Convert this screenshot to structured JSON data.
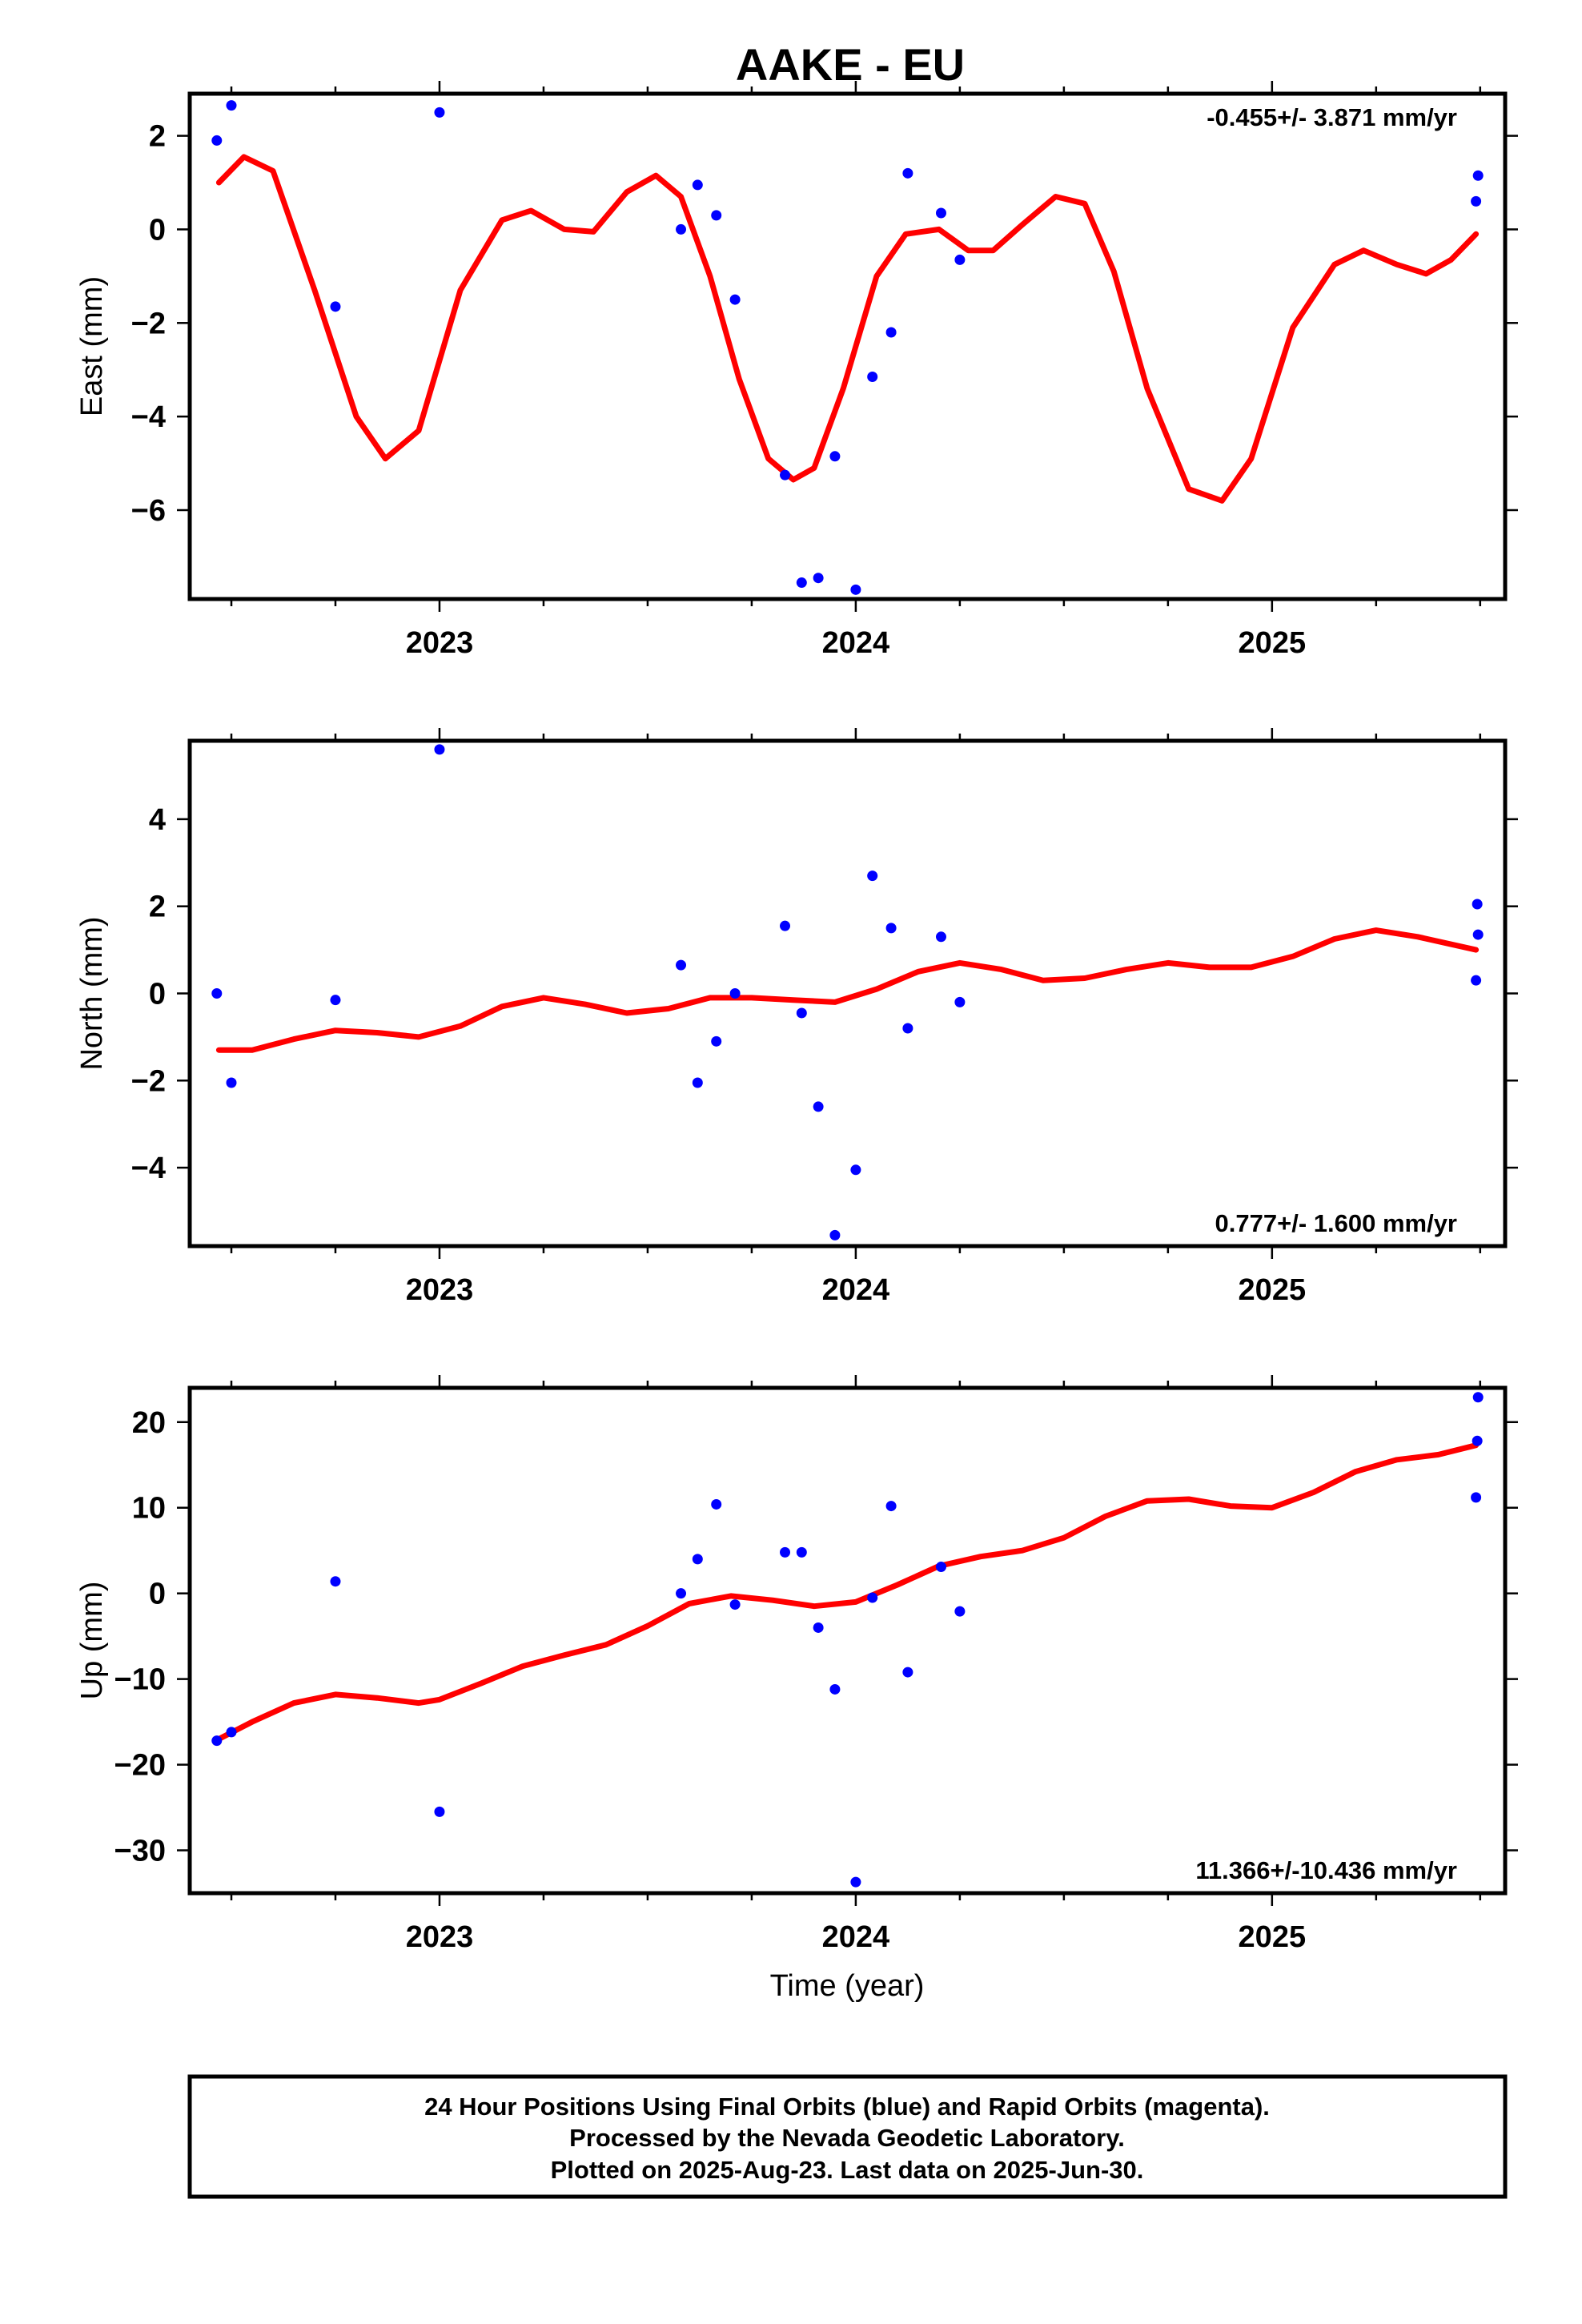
{
  "title": "AAKE - EU",
  "footer": [
    "24 Hour Positions Using Final Orbits (blue) and Rapid Orbits (magenta).",
    "Processed by the Nevada Geodetic Laboratory.",
    "Plotted on 2025-Aug-23. Last data on 2025-Jun-30."
  ],
  "colors": {
    "points": "#0000ff",
    "fit": "#ff0000",
    "axes": "#000000"
  },
  "chart_data": [
    {
      "type": "scatter",
      "ylabel": "East (mm)",
      "xlabel": "",
      "rate_text": "-0.455+/- 3.871 mm/yr",
      "rate_position": "top-right",
      "xlim": [
        2022.4,
        2025.56
      ],
      "ylim": [
        -7.9,
        2.9
      ],
      "xticks": [
        2023,
        2024,
        2025
      ],
      "yticks": [
        2,
        0,
        -2,
        -4,
        -6
      ],
      "ytick_labels": [
        "2",
        "0",
        "−2",
        "−4",
        "−6"
      ],
      "grid": false,
      "series": [
        {
          "type": "scatter",
          "x": [
            2022.465,
            2022.5,
            2022.75,
            2023.0,
            2023.58,
            2023.62,
            2023.665,
            2023.71,
            2023.83,
            2023.87,
            2023.91,
            2023.95,
            2024.0,
            2024.04,
            2024.085,
            2024.125,
            2024.205,
            2024.25,
            2025.49,
            2025.495
          ],
          "y": [
            1.9,
            2.65,
            -1.65,
            2.5,
            0.0,
            0.95,
            0.3,
            -1.5,
            -5.25,
            -7.55,
            -7.45,
            -4.85,
            -7.7,
            -3.15,
            -2.2,
            1.2,
            0.35,
            -0.65,
            0.6,
            1.15
          ]
        },
        {
          "type": "line",
          "x": [
            2022.47,
            2022.53,
            2022.6,
            2022.7,
            2022.8,
            2022.87,
            2022.95,
            2023.05,
            2023.15,
            2023.22,
            2023.3,
            2023.37,
            2023.45,
            2023.52,
            2023.58,
            2023.65,
            2023.72,
            2023.79,
            2023.85,
            2023.9,
            2023.97,
            2024.05,
            2024.12,
            2024.2,
            2024.27,
            2024.33,
            2024.4,
            2024.48,
            2024.55,
            2024.62,
            2024.7,
            2024.8,
            2024.88,
            2024.95,
            2025.05,
            2025.15,
            2025.22,
            2025.3,
            2025.37,
            2025.43,
            2025.49
          ],
          "y": [
            1.0,
            1.55,
            1.25,
            -1.3,
            -4.0,
            -4.9,
            -4.3,
            -1.3,
            0.2,
            0.4,
            0.0,
            -0.05,
            0.8,
            1.15,
            0.7,
            -1.0,
            -3.2,
            -4.9,
            -5.35,
            -5.1,
            -3.4,
            -1.0,
            -0.1,
            0.0,
            -0.45,
            -0.45,
            0.1,
            0.7,
            0.55,
            -0.9,
            -3.4,
            -5.55,
            -5.8,
            -4.9,
            -2.1,
            -0.75,
            -0.45,
            -0.75,
            -0.95,
            -0.65,
            -0.1
          ]
        }
      ]
    },
    {
      "type": "scatter",
      "ylabel": "North (mm)",
      "xlabel": "",
      "rate_text": "0.777+/- 1.600 mm/yr",
      "rate_position": "bottom-right",
      "xlim": [
        2022.4,
        2025.56
      ],
      "ylim": [
        -5.8,
        5.8
      ],
      "xticks": [
        2023,
        2024,
        2025
      ],
      "yticks": [
        4,
        2,
        0,
        -2,
        -4
      ],
      "ytick_labels": [
        "4",
        "2",
        "0",
        "−2",
        "−4"
      ],
      "grid": false,
      "series": [
        {
          "type": "scatter",
          "x": [
            2022.465,
            2022.5,
            2022.75,
            2023.0,
            2023.58,
            2023.62,
            2023.665,
            2023.71,
            2023.83,
            2023.87,
            2023.91,
            2023.95,
            2024.0,
            2024.04,
            2024.085,
            2024.125,
            2024.205,
            2024.25,
            2025.49,
            2025.493,
            2025.495
          ],
          "y": [
            0.0,
            -2.05,
            -0.15,
            5.6,
            0.65,
            -2.05,
            -1.1,
            0.0,
            1.55,
            -0.45,
            -2.6,
            -5.55,
            -4.05,
            2.7,
            1.5,
            -0.8,
            1.3,
            -0.2,
            0.3,
            2.05,
            1.35
          ]
        },
        {
          "type": "line",
          "x": [
            2022.47,
            2022.55,
            2022.65,
            2022.75,
            2022.85,
            2022.95,
            2023.05,
            2023.15,
            2023.25,
            2023.35,
            2023.45,
            2023.55,
            2023.65,
            2023.75,
            2023.85,
            2023.95,
            2024.05,
            2024.15,
            2024.25,
            2024.35,
            2024.45,
            2024.55,
            2024.65,
            2024.75,
            2024.85,
            2024.95,
            2025.05,
            2025.15,
            2025.25,
            2025.35,
            2025.49
          ],
          "y": [
            -1.3,
            -1.3,
            -1.05,
            -0.85,
            -0.9,
            -1.0,
            -0.75,
            -0.3,
            -0.1,
            -0.25,
            -0.45,
            -0.35,
            -0.1,
            -0.1,
            -0.15,
            -0.2,
            0.1,
            0.5,
            0.7,
            0.55,
            0.3,
            0.35,
            0.55,
            0.7,
            0.6,
            0.6,
            0.85,
            1.25,
            1.45,
            1.3,
            1.0
          ]
        }
      ]
    },
    {
      "type": "scatter",
      "ylabel": "Up (mm)",
      "xlabel": "Time (year)",
      "rate_text": "11.366+/-10.436 mm/yr",
      "rate_position": "bottom-right",
      "xlim": [
        2022.4,
        2025.56
      ],
      "ylim": [
        -35,
        24
      ],
      "xticks": [
        2023,
        2024,
        2025
      ],
      "yticks": [
        20,
        10,
        0,
        -10,
        -20,
        -30
      ],
      "ytick_labels": [
        "20",
        "10",
        "0",
        "−10",
        "−20",
        "−30"
      ],
      "grid": false,
      "series": [
        {
          "type": "scatter",
          "x": [
            2022.465,
            2022.5,
            2022.75,
            2023.0,
            2023.58,
            2023.62,
            2023.665,
            2023.71,
            2023.83,
            2023.87,
            2023.91,
            2023.95,
            2024.0,
            2024.04,
            2024.085,
            2024.125,
            2024.205,
            2024.25,
            2025.49,
            2025.493,
            2025.495
          ],
          "y": [
            -17.2,
            -16.2,
            1.4,
            -25.5,
            0.0,
            4.0,
            10.4,
            -1.3,
            4.8,
            4.8,
            -4.0,
            -11.2,
            -33.7,
            -0.5,
            10.2,
            -9.2,
            3.1,
            -2.1,
            11.2,
            17.8,
            22.9
          ]
        },
        {
          "type": "line",
          "x": [
            2022.47,
            2022.55,
            2022.65,
            2022.75,
            2022.85,
            2022.95,
            2023.0,
            2023.1,
            2023.2,
            2023.3,
            2023.4,
            2023.5,
            2023.6,
            2023.7,
            2023.8,
            2023.9,
            2024.0,
            2024.1,
            2024.2,
            2024.3,
            2024.4,
            2024.5,
            2024.6,
            2024.7,
            2024.8,
            2024.9,
            2025.0,
            2025.1,
            2025.2,
            2025.3,
            2025.4,
            2025.49
          ],
          "y": [
            -17.0,
            -15.0,
            -12.8,
            -11.8,
            -12.2,
            -12.8,
            -12.4,
            -10.5,
            -8.5,
            -7.2,
            -6.0,
            -3.8,
            -1.2,
            -0.3,
            -0.8,
            -1.5,
            -1.0,
            1.0,
            3.2,
            4.3,
            5.0,
            6.5,
            9.0,
            10.8,
            11.0,
            10.2,
            10.0,
            11.8,
            14.2,
            15.6,
            16.2,
            17.3
          ]
        }
      ]
    }
  ]
}
